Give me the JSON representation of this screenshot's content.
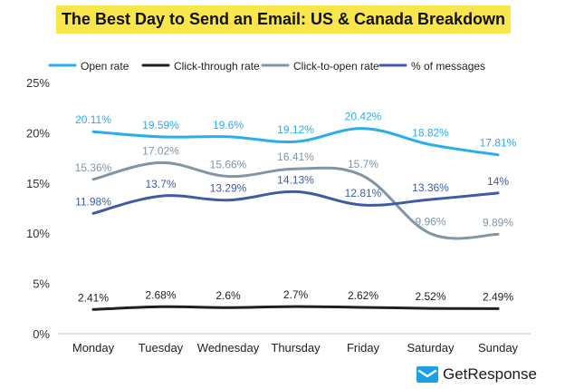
{
  "chart_data": {
    "type": "line",
    "title": "The Best Day to Send an Email: US & Canada Breakdown",
    "categories": [
      "Monday",
      "Tuesday",
      "Wednesday",
      "Thursday",
      "Friday",
      "Saturday",
      "Sunday"
    ],
    "ylim": [
      0,
      25
    ],
    "yticks": [
      0,
      5,
      10,
      15,
      20,
      25
    ],
    "ytick_labels": [
      "0%",
      "5%",
      "10%",
      "15%",
      "20%",
      "25%"
    ],
    "grid": false,
    "legend_position": "top",
    "series": [
      {
        "name": "Open rate",
        "color": "#29adef",
        "values": [
          20.11,
          19.59,
          19.6,
          19.12,
          20.42,
          18.82,
          17.81
        ],
        "labels": [
          "20.11%",
          "19.59%",
          "19.6%",
          "19.12%",
          "20.42%",
          "18.82%",
          "17.81%"
        ]
      },
      {
        "name": "Click-through rate",
        "color": "#1f1f1f",
        "values": [
          2.41,
          2.68,
          2.6,
          2.7,
          2.62,
          2.52,
          2.49
        ],
        "labels": [
          "2.41%",
          "2.68%",
          "2.6%",
          "2.7%",
          "2.62%",
          "2.52%",
          "2.49%"
        ]
      },
      {
        "name": "Click-to-open rate",
        "color": "#8095a6",
        "values": [
          15.36,
          17.02,
          15.66,
          16.41,
          15.7,
          9.96,
          9.89
        ],
        "labels": [
          "15.36%",
          "17.02%",
          "15.66%",
          "16.41%",
          "15.7%",
          "9.96%",
          "9.89%"
        ]
      },
      {
        "name": "% of messages",
        "color": "#3f5ba6",
        "values": [
          11.98,
          13.7,
          13.29,
          14.13,
          12.81,
          13.36,
          14.0
        ],
        "labels": [
          "11.98%",
          "13.7%",
          "13.29%",
          "14.13%",
          "12.81%",
          "13.36%",
          "14%"
        ]
      }
    ]
  },
  "brand": {
    "name": "GetResponse",
    "icon": "envelope-icon",
    "color": "#19a0e6"
  }
}
